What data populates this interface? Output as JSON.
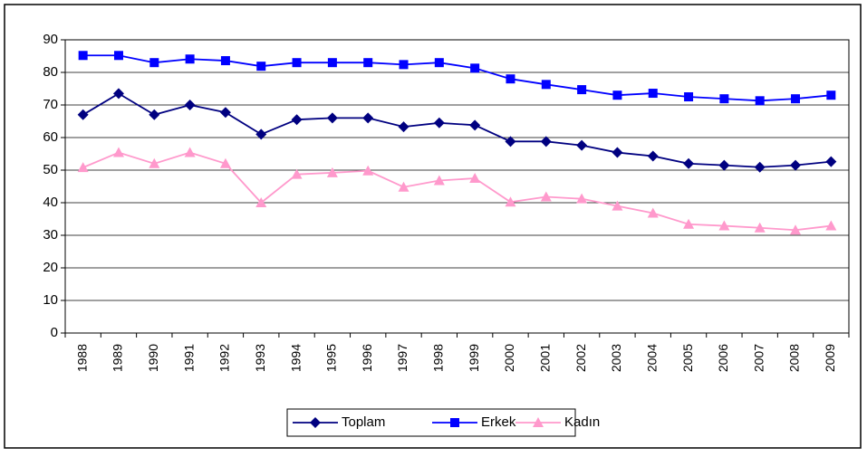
{
  "chart_data": {
    "type": "line",
    "categories": [
      "1988",
      "1989",
      "1990",
      "1991",
      "1992",
      "1993",
      "1994",
      "1995",
      "1996",
      "1997",
      "1998",
      "1999",
      "2000",
      "2001",
      "2002",
      "2003",
      "2004",
      "2005",
      "2006",
      "2007",
      "2008",
      "2009"
    ],
    "series": [
      {
        "name": "Toplam",
        "color": "#000080",
        "marker": "diamond",
        "values": [
          67,
          73.5,
          67,
          70,
          67.7,
          61,
          65.5,
          66,
          66,
          63.3,
          64.5,
          63.8,
          58.8,
          58.8,
          57.6,
          55.4,
          54.3,
          52,
          51.5,
          50.9,
          51.5,
          52.6
        ]
      },
      {
        "name": "Erkek",
        "color": "#0000ff",
        "marker": "square",
        "values": [
          85.2,
          85.2,
          83,
          84.1,
          83.6,
          81.9,
          83,
          83,
          83,
          82.4,
          83,
          81.3,
          78,
          76.3,
          74.7,
          73,
          73.6,
          72.5,
          71.9,
          71.3,
          71.9,
          73
        ]
      },
      {
        "name": "Kadın",
        "color": "#ff99cc",
        "marker": "triangle",
        "values": [
          50.8,
          55.4,
          52,
          55.4,
          52,
          40,
          48.7,
          49.2,
          49.8,
          44.8,
          46.8,
          47.5,
          40.2,
          41.8,
          41.2,
          39,
          36.8,
          33.4,
          32.9,
          32.3,
          31.6,
          32.9
        ]
      }
    ],
    "ylim": [
      0,
      90
    ],
    "yticks": [
      0,
      10,
      20,
      30,
      40,
      50,
      60,
      70,
      80,
      90
    ],
    "grid": true,
    "legend": "bottom"
  }
}
